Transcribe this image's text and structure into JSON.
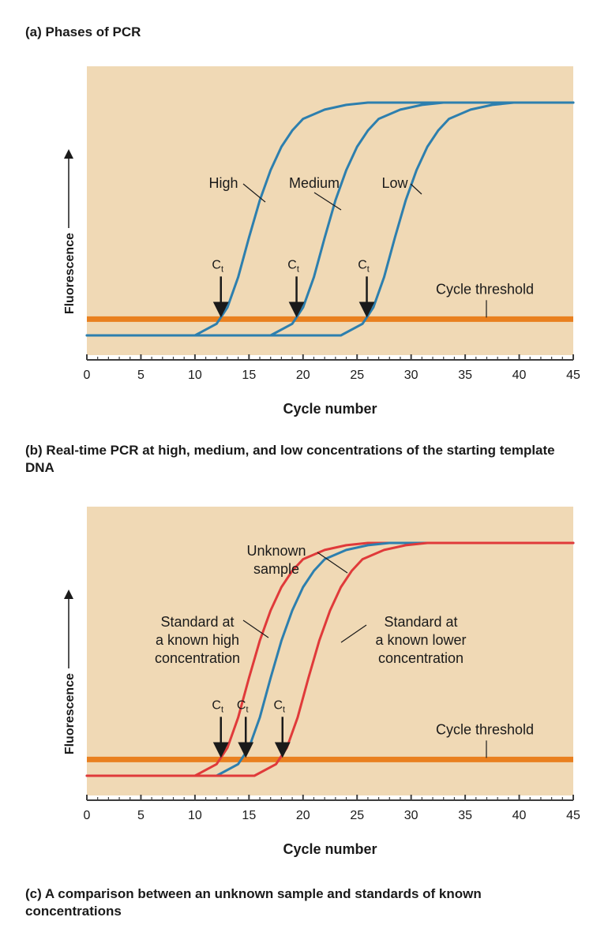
{
  "captions": {
    "a": "(a) Phases of PCR",
    "b": "(b) Real-time PCR at high, medium, and low concentrations of the starting template DNA",
    "c": "(c) A comparison between an unknown sample and standards of known concentrations"
  },
  "colors": {
    "background": "#f0d9b5",
    "axis": "#3d3d3d",
    "threshold": "#e9801f",
    "blue_curve": "#2d7fae",
    "red_curve": "#e03a3a",
    "text": "#1a1a1a"
  },
  "chart_data": [
    {
      "id": "b",
      "type": "line",
      "title": "",
      "xlabel": "Cycle number",
      "ylabel": "Fluorescence",
      "xlim": [
        0,
        45
      ],
      "ylim": [
        0,
        1
      ],
      "xticks": [
        0,
        5,
        10,
        15,
        20,
        25,
        30,
        35,
        40,
        45
      ],
      "grid": false,
      "threshold": {
        "label": "Cycle threshold",
        "y": 0.07
      },
      "ct_marker": "Ct",
      "series": [
        {
          "name": "High",
          "color": "blue",
          "midpoint": 16.5,
          "ct": 12.4,
          "x": [
            0,
            10,
            12,
            13,
            14,
            15,
            16,
            17,
            18,
            19,
            20,
            22,
            24,
            26,
            45
          ],
          "y": [
            0.0,
            0.0,
            0.05,
            0.12,
            0.25,
            0.42,
            0.58,
            0.71,
            0.81,
            0.88,
            0.93,
            0.97,
            0.99,
            1.0,
            1.0
          ]
        },
        {
          "name": "Medium",
          "color": "blue",
          "midpoint": 23.5,
          "ct": 19.4,
          "x": [
            0,
            17,
            19,
            20,
            21,
            22,
            23,
            24,
            25,
            26,
            27,
            29,
            31,
            33,
            45
          ],
          "y": [
            0.0,
            0.0,
            0.05,
            0.12,
            0.25,
            0.42,
            0.58,
            0.71,
            0.81,
            0.88,
            0.93,
            0.97,
            0.99,
            1.0,
            1.0
          ]
        },
        {
          "name": "Low",
          "color": "blue",
          "midpoint": 30,
          "ct": 25.9,
          "x": [
            0,
            23.5,
            25.5,
            26.5,
            27.5,
            28.5,
            29.5,
            30.5,
            31.5,
            32.5,
            33.5,
            35.5,
            37.5,
            39.5,
            45
          ],
          "y": [
            0.0,
            0.0,
            0.05,
            0.12,
            0.25,
            0.42,
            0.58,
            0.71,
            0.81,
            0.88,
            0.93,
            0.97,
            0.99,
            1.0,
            1.0
          ]
        }
      ],
      "labels": [
        {
          "series": "High",
          "lines": [
            "High"
          ]
        },
        {
          "series": "Medium",
          "lines": [
            "Medium"
          ]
        },
        {
          "series": "Low",
          "lines": [
            "Low"
          ]
        }
      ]
    },
    {
      "id": "c",
      "type": "line",
      "title": "",
      "xlabel": "Cycle number",
      "ylabel": "Fluorescence",
      "xlim": [
        0,
        45
      ],
      "ylim": [
        0,
        1
      ],
      "xticks": [
        0,
        5,
        10,
        15,
        20,
        25,
        30,
        35,
        40,
        45
      ],
      "grid": false,
      "threshold": {
        "label": "Cycle threshold",
        "y": 0.07
      },
      "ct_marker": "Ct",
      "series": [
        {
          "name": "Standard at a known high concentration",
          "color": "red",
          "midpoint": 16.5,
          "ct": 12.4,
          "x": [
            0,
            10,
            12,
            13,
            14,
            15,
            16,
            17,
            18,
            19,
            20,
            22,
            24,
            26,
            45
          ],
          "y": [
            0.0,
            0.0,
            0.05,
            0.12,
            0.25,
            0.42,
            0.58,
            0.71,
            0.81,
            0.88,
            0.93,
            0.97,
            0.99,
            1.0,
            1.0
          ]
        },
        {
          "name": "Unknown sample",
          "color": "blue",
          "midpoint": 18.5,
          "ct": 14.7,
          "x": [
            0,
            12,
            14,
            15,
            16,
            17,
            18,
            19,
            20,
            21,
            22,
            24,
            26,
            28,
            45
          ],
          "y": [
            0.0,
            0.0,
            0.05,
            0.12,
            0.25,
            0.42,
            0.58,
            0.71,
            0.81,
            0.88,
            0.93,
            0.97,
            0.99,
            1.0,
            1.0
          ]
        },
        {
          "name": "Standard at a known lower concentration",
          "color": "red",
          "midpoint": 22,
          "ct": 18.1,
          "x": [
            0,
            15.5,
            17.5,
            18.5,
            19.5,
            20.5,
            21.5,
            22.5,
            23.5,
            24.5,
            25.5,
            27.5,
            29.5,
            31.5,
            45
          ],
          "y": [
            0.0,
            0.0,
            0.05,
            0.12,
            0.25,
            0.42,
            0.58,
            0.71,
            0.81,
            0.88,
            0.93,
            0.97,
            0.99,
            1.0,
            1.0
          ]
        }
      ],
      "labels": [
        {
          "series": "Unknown sample",
          "lines": [
            "Unknown",
            "sample"
          ]
        },
        {
          "series": "Standard at a known high concentration",
          "lines": [
            "Standard at",
            "a known high",
            "concentration"
          ]
        },
        {
          "series": "Standard at a known lower concentration",
          "lines": [
            "Standard at",
            "a known lower",
            "concentration"
          ]
        }
      ]
    }
  ]
}
